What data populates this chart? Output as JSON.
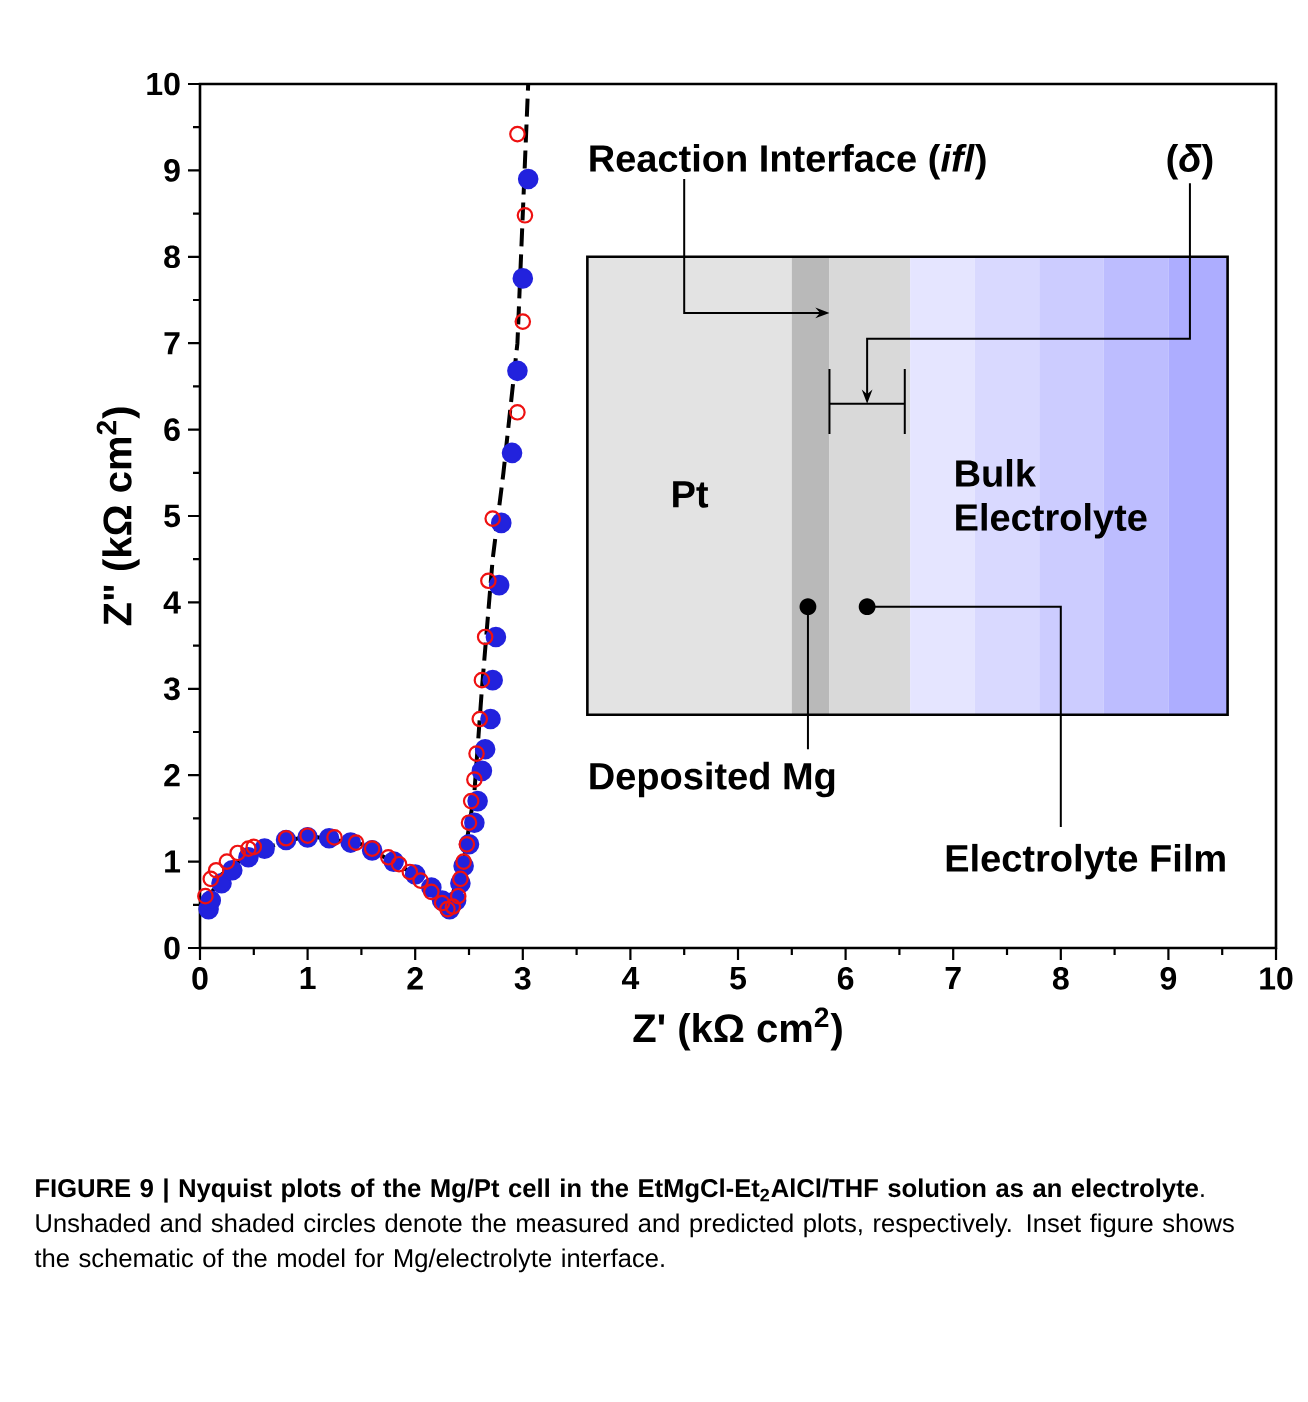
{
  "chart_data": {
    "type": "scatter",
    "title": "FIGURE 9 | Nyquist plots of the Mg/Pt cell in the EtMgCl-Et$_{2}$AlCl/THF solution as an electrolyte",
    "xlabel": "Z' (kΩ cm$^{2}$)",
    "ylabel": "Z\" (kΩ cm$^{2}$)",
    "xlim": [
      0,
      10
    ],
    "ylim": [
      0,
      10
    ],
    "xticks": [
      0,
      1,
      2,
      3,
      4,
      5,
      6,
      7,
      8,
      9,
      10
    ],
    "yticks": [
      0,
      1,
      2,
      3,
      4,
      5,
      6,
      7,
      8,
      9,
      10
    ],
    "marker": "circle",
    "grid": false,
    "series": [
      {
        "color": "#2222dd",
        "x": [
          0.08,
          0.1,
          0.2,
          0.3,
          0.45,
          0.6,
          0.8,
          1.0,
          1.2,
          1.4,
          1.6,
          1.8,
          2.0,
          2.15,
          2.25,
          2.32,
          2.38,
          2.42,
          2.45,
          2.5,
          2.55,
          2.58,
          2.62,
          2.65,
          2.7,
          2.72,
          2.75,
          2.78,
          2.8,
          2.9,
          2.95,
          3.0,
          3.05
        ],
        "values": [
          0.45,
          0.55,
          0.75,
          0.9,
          1.05,
          1.15,
          1.25,
          1.28,
          1.27,
          1.22,
          1.13,
          1.0,
          0.85,
          0.7,
          0.55,
          0.45,
          0.55,
          0.75,
          0.95,
          1.2,
          1.45,
          1.7,
          2.05,
          2.3,
          2.65,
          3.1,
          3.6,
          4.2,
          4.92,
          5.73,
          6.68,
          7.75,
          8.9
        ]
      },
      {
        "color": "#ee1111",
        "x": [
          0.05,
          0.1,
          0.15,
          0.25,
          0.35,
          0.45,
          0.5,
          0.8,
          1.0,
          1.25,
          1.45,
          1.6,
          1.75,
          1.85,
          1.95,
          2.05,
          2.15,
          2.25,
          2.3,
          2.35,
          2.4,
          2.42,
          2.45,
          2.48,
          2.5,
          2.52,
          2.55,
          2.57,
          2.6,
          2.62,
          2.65,
          2.68,
          2.72,
          2.95,
          3.0,
          3.02,
          2.95
        ],
        "values": [
          0.6,
          0.8,
          0.9,
          1.0,
          1.1,
          1.15,
          1.17,
          1.27,
          1.3,
          1.28,
          1.22,
          1.15,
          1.05,
          0.97,
          0.88,
          0.78,
          0.65,
          0.52,
          0.45,
          0.48,
          0.6,
          0.8,
          1.0,
          1.2,
          1.45,
          1.7,
          1.95,
          2.25,
          2.65,
          3.1,
          3.6,
          4.25,
          4.97,
          6.2,
          7.25,
          8.48,
          9.42
        ]
      },
      {
        "type": "line",
        "line_style": "dashed",
        "marker": "none",
        "color": "#000000",
        "x": [
          0.05,
          0.2,
          0.5,
          1.0,
          1.5,
          2.0,
          2.3,
          2.45,
          2.55,
          2.62,
          2.72,
          2.82,
          2.95,
          3.05
        ],
        "values": [
          0.5,
          0.85,
          1.12,
          1.3,
          1.2,
          0.85,
          0.45,
          1.0,
          1.8,
          3.0,
          4.5,
          5.5,
          7.0,
          10.0
        ]
      }
    ],
    "annotations": [
      "Reaction Interface (*ifl*)",
      "(*δ*)",
      "Pt",
      "Bulk Electrolyte",
      "Deposited Mg",
      "Electrolyte Film",
      ". Unshaded and shaded circles denote the measured and predicted plots, respectively. Inset figure shows the schematic of the model for Mg/electrolyte interface."
    ]
  }
}
